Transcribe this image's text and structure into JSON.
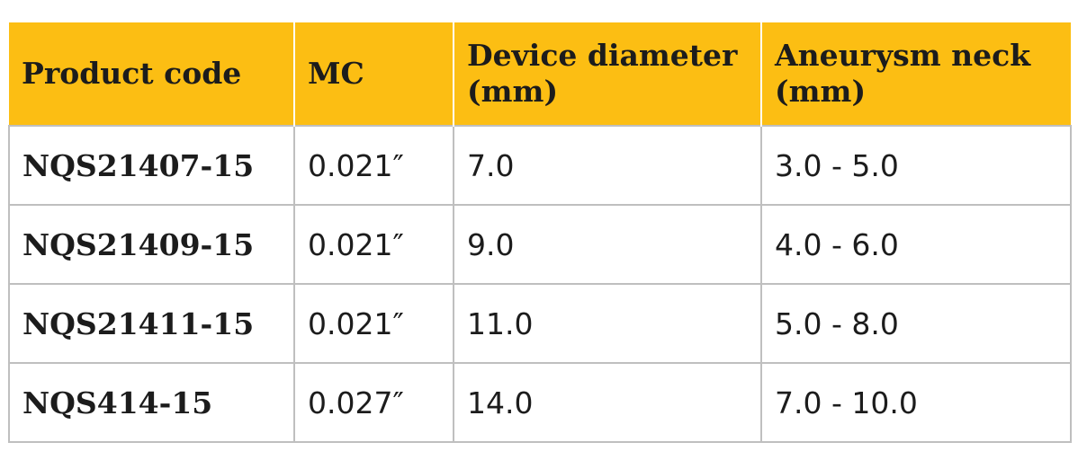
{
  "table": {
    "headers": [
      "Product code",
      "MC",
      "Device diameter (mm)",
      "Aneurysm neck (mm)"
    ],
    "rows": [
      {
        "product_code": "NQS21407-15",
        "mc": "0.021″",
        "device_diameter": "7.0",
        "aneurysm_neck": "3.0 - 5.0"
      },
      {
        "product_code": "NQS21409-15",
        "mc": "0.021″",
        "device_diameter": "9.0",
        "aneurysm_neck": "4.0 - 6.0"
      },
      {
        "product_code": "NQS21411-15",
        "mc": "0.021″",
        "device_diameter": "11.0",
        "aneurysm_neck": "5.0 - 8.0"
      },
      {
        "product_code": "NQS414-15",
        "mc": "0.027″",
        "device_diameter": "14.0",
        "aneurysm_neck": "7.0 - 10.0"
      }
    ],
    "header_color": "#fcbe13",
    "border_color": "#bfbfbf"
  }
}
